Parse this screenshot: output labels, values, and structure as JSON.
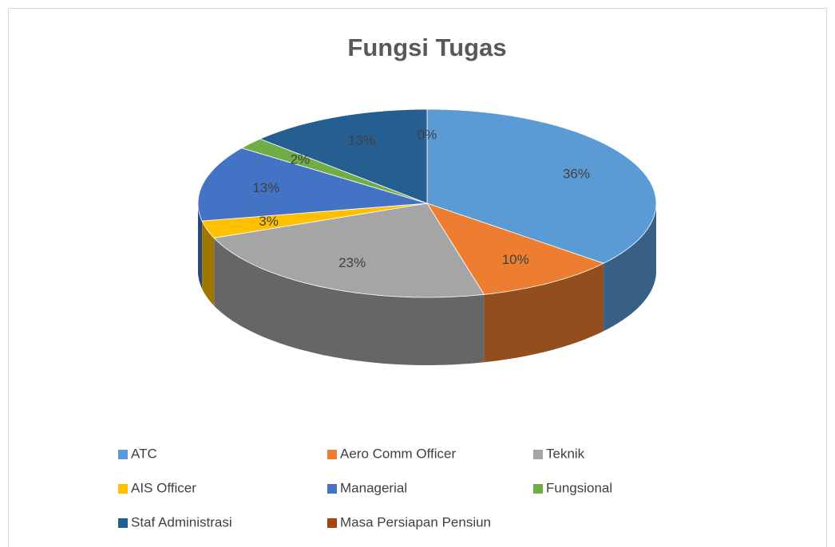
{
  "chart_data": {
    "type": "pie3d",
    "title": "Fungsi Tugas",
    "categories": [
      "ATC",
      "Aero Comm Officer",
      "Teknik",
      "AIS Officer",
      "Managerial",
      "Fungsional",
      "Staf Administrasi",
      "Masa Persiapan Pensiun"
    ],
    "values": [
      36,
      10,
      23,
      3,
      13,
      2,
      13,
      0
    ],
    "value_labels": [
      "36%",
      "10%",
      "23%",
      "3%",
      "13%",
      "2%",
      "13%",
      "0%"
    ],
    "colors": [
      "#5b9bd5",
      "#ed7d31",
      "#a5a5a5",
      "#ffc000",
      "#4472c4",
      "#70ad47",
      "#255e91",
      "#9e480e"
    ],
    "legend": "bottom"
  }
}
